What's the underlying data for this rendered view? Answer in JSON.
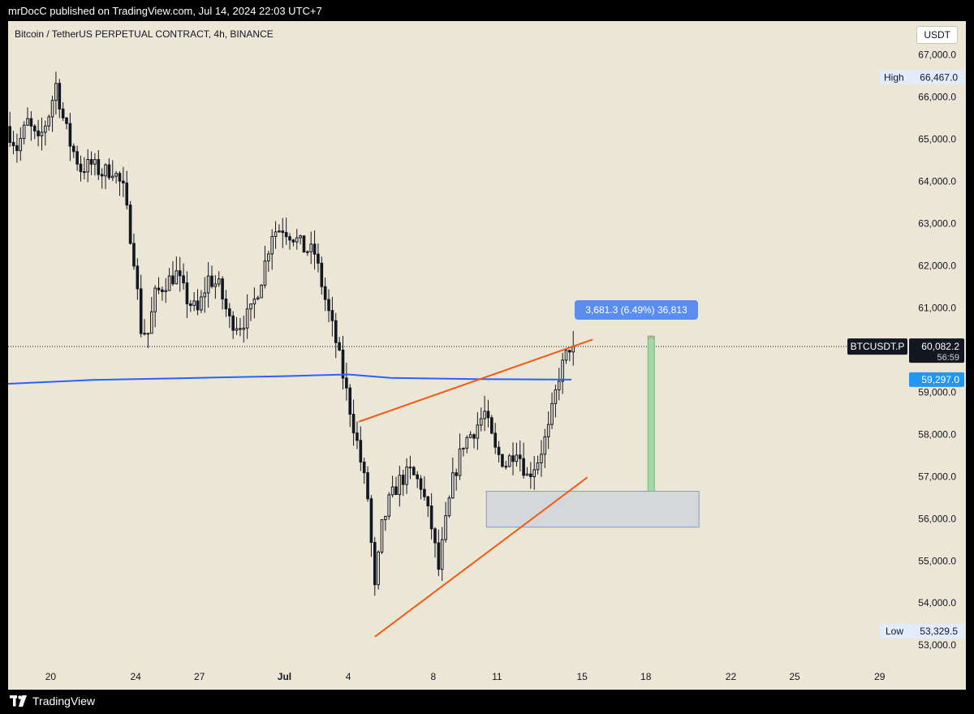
{
  "header": {
    "published_text": "mrDocC published on TradingView.com, Jul 14, 2024 22:03 UTC+7"
  },
  "symbol": {
    "title": "Bitcoin / TetherUS PERPETUAL CONTRACT, 4h, BINANCE",
    "currency": "USDT"
  },
  "footer": {
    "brand": "TradingView"
  },
  "colors": {
    "background": "#ebe6d6",
    "candle": "#131722",
    "trendline": "#f05a14",
    "moving_average": "#2962ff",
    "measure_box": "#5b8def",
    "target_fill": "#a5d6a7",
    "zone_fill": "#d1d4dc"
  },
  "chart_data": {
    "type": "candlestick",
    "title": "Bitcoin / TetherUS PERPETUAL CONTRACT, 4h, BINANCE",
    "interval": "4h",
    "exchange": "BINANCE",
    "ylim": [
      52600,
      67800
    ],
    "y_ticks": [
      53000,
      54000,
      55000,
      56000,
      57000,
      58000,
      59000,
      60000,
      61000,
      62000,
      63000,
      64000,
      65000,
      66000,
      67000
    ],
    "y_tick_labels": [
      "53,000.0",
      "54,000.0",
      "55,000.0",
      "56,000.0",
      "57,000.0",
      "58,000.0",
      "59,000.0",
      "",
      "61,000.0",
      "62,000.0",
      "63,000.0",
      "64,000.0",
      "65,000.0",
      "66,000.0",
      "67,000.0"
    ],
    "x_date_range": [
      "2024-06-18",
      "2024-07-30"
    ],
    "x_ticks": [
      {
        "date": "2024-06-20",
        "label": "20",
        "bold": false
      },
      {
        "date": "2024-06-24",
        "label": "24",
        "bold": false
      },
      {
        "date": "2024-06-27",
        "label": "27",
        "bold": false
      },
      {
        "date": "2024-07-01",
        "label": "Jul",
        "bold": true
      },
      {
        "date": "2024-07-04",
        "label": "4",
        "bold": false
      },
      {
        "date": "2024-07-08",
        "label": "8",
        "bold": false
      },
      {
        "date": "2024-07-11",
        "label": "11",
        "bold": false
      },
      {
        "date": "2024-07-15",
        "label": "15",
        "bold": false
      },
      {
        "date": "2024-07-18",
        "label": "18",
        "bold": false
      },
      {
        "date": "2024-07-22",
        "label": "22",
        "bold": false
      },
      {
        "date": "2024-07-25",
        "label": "25",
        "bold": false
      },
      {
        "date": "2024-07-29",
        "label": "29",
        "bold": false
      }
    ],
    "price_path": [
      [
        "2024-06-18",
        65300
      ],
      [
        "2024-06-18T12:00",
        64800
      ],
      [
        "2024-06-19",
        65400
      ],
      [
        "2024-06-19T12:00",
        64900
      ],
      [
        "2024-06-20",
        65600
      ],
      [
        "2024-06-20T08:00",
        66300
      ],
      [
        "2024-06-20T16:00",
        65500
      ],
      [
        "2024-06-21",
        64900
      ],
      [
        "2024-06-21T12:00",
        64300
      ],
      [
        "2024-06-22",
        64400
      ],
      [
        "2024-06-22T12:00",
        64200
      ],
      [
        "2024-06-23",
        64300
      ],
      [
        "2024-06-23T12:00",
        63800
      ],
      [
        "2024-06-24",
        62200
      ],
      [
        "2024-06-24T08:00",
        60500
      ],
      [
        "2024-06-24T16:00",
        60400
      ],
      [
        "2024-06-25",
        61300
      ],
      [
        "2024-06-25T12:00",
        61600
      ],
      [
        "2024-06-26",
        61800
      ],
      [
        "2024-06-26T12:00",
        61200
      ],
      [
        "2024-06-27",
        60900
      ],
      [
        "2024-06-27T12:00",
        61700
      ],
      [
        "2024-06-28",
        61500
      ],
      [
        "2024-06-28T12:00",
        60700
      ],
      [
        "2024-06-29",
        60600
      ],
      [
        "2024-06-29T12:00",
        60900
      ],
      [
        "2024-06-30",
        61700
      ],
      [
        "2024-06-30T12:00",
        62800
      ],
      [
        "2024-07-01",
        62900
      ],
      [
        "2024-07-01T12:00",
        62700
      ],
      [
        "2024-07-02",
        62400
      ],
      [
        "2024-07-02T12:00",
        62300
      ],
      [
        "2024-07-03",
        61200
      ],
      [
        "2024-07-03T12:00",
        60200
      ],
      [
        "2024-07-04",
        59000
      ],
      [
        "2024-07-04T12:00",
        57800
      ],
      [
        "2024-07-05",
        56500
      ],
      [
        "2024-07-05T08:00",
        54300
      ],
      [
        "2024-07-05T16:00",
        55800
      ],
      [
        "2024-07-06",
        56400
      ],
      [
        "2024-07-06T12:00",
        56900
      ],
      [
        "2024-07-07",
        57100
      ],
      [
        "2024-07-07T12:00",
        56800
      ],
      [
        "2024-07-08",
        55800
      ],
      [
        "2024-07-08T08:00",
        54800
      ],
      [
        "2024-07-08T16:00",
        55900
      ],
      [
        "2024-07-09",
        56900
      ],
      [
        "2024-07-09T12:00",
        57800
      ],
      [
        "2024-07-10",
        58100
      ],
      [
        "2024-07-10T12:00",
        58500
      ],
      [
        "2024-07-11",
        57600
      ],
      [
        "2024-07-11T12:00",
        57300
      ],
      [
        "2024-07-12",
        57700
      ],
      [
        "2024-07-12T12:00",
        57000
      ],
      [
        "2024-07-13",
        57400
      ],
      [
        "2024-07-13T12:00",
        58100
      ],
      [
        "2024-07-14",
        59400
      ],
      [
        "2024-07-14T12:00",
        60082
      ]
    ],
    "last_price": 60082.2,
    "annotations": {
      "high": {
        "label": "High",
        "value": "66,467.0",
        "price": 66467.0
      },
      "low": {
        "label": "Low",
        "value": "53,329.5",
        "price": 53329.5
      },
      "last_price_tag": {
        "symbol": "BTCUSDT.P",
        "value": "60,082.2",
        "countdown": "56:59",
        "price": 60082.2
      },
      "moving_average": {
        "label": "59,297.0",
        "price": 59297.0,
        "points": [
          [
            "2024-06-18",
            59200
          ],
          [
            "2024-06-22",
            59290
          ],
          [
            "2024-06-26",
            59330
          ],
          [
            "2024-07-01",
            59380
          ],
          [
            "2024-07-04",
            59420
          ],
          [
            "2024-07-06",
            59340
          ],
          [
            "2024-07-10",
            59310
          ],
          [
            "2024-07-14T12:00",
            59297
          ]
        ]
      },
      "upper_trendline": {
        "start": [
          "2024-07-04T12:00",
          58300
        ],
        "end": [
          "2024-07-15T12:00",
          60250
        ]
      },
      "lower_trendline": {
        "start": [
          "2024-07-05T06:00",
          53200
        ],
        "end": [
          "2024-07-15T06:00",
          56980
        ]
      },
      "support_zone": {
        "date_start": "2024-07-10T12:00",
        "date_end": "2024-07-20T12:00",
        "price_low": 55800,
        "price_high": 56650
      },
      "price_range_measure": {
        "label": "3,681.3 (6.49%) 36,813",
        "date": "2024-07-18T06:00",
        "price_from": 56650,
        "price_to": 60331
      }
    }
  }
}
